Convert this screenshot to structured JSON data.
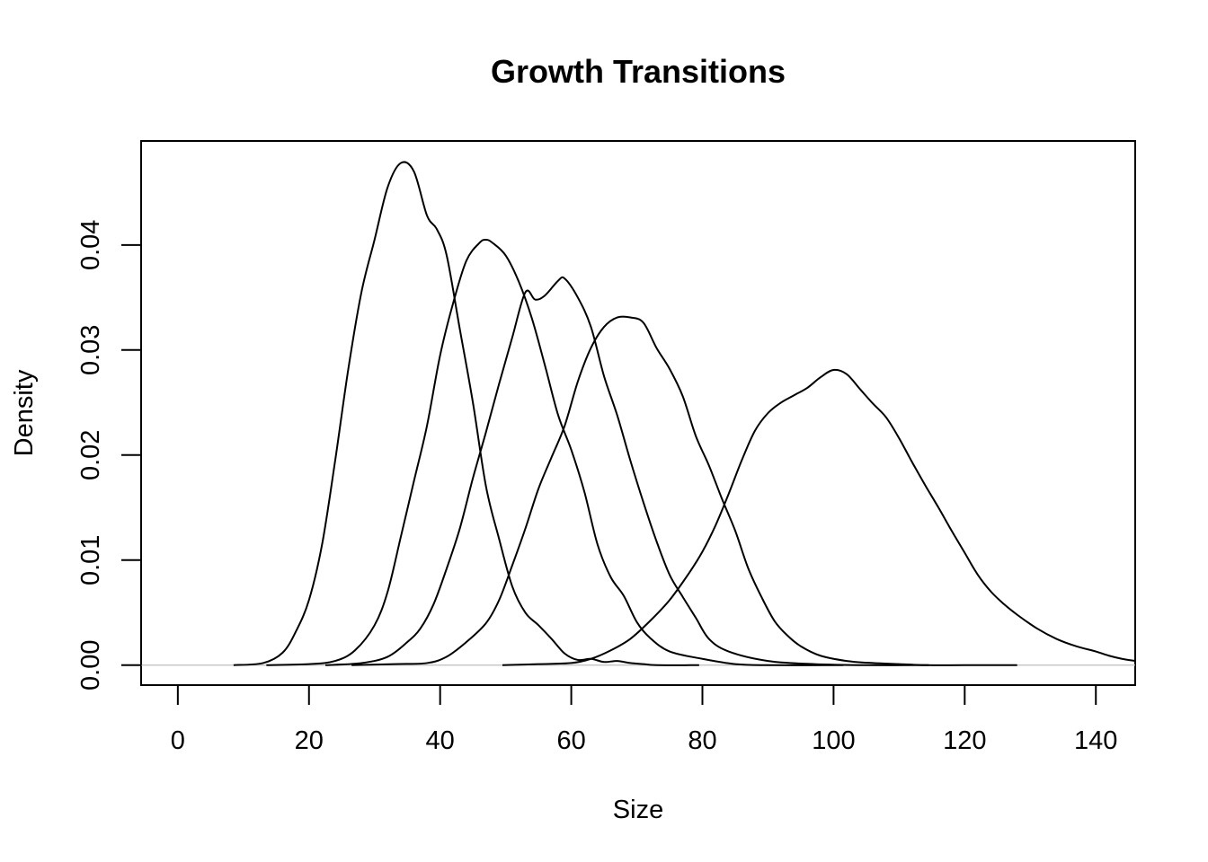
{
  "chart_data": {
    "type": "line",
    "title": "Growth Transitions",
    "xlabel": "Size",
    "ylabel": "Density",
    "xlim": [
      -5.6,
      146
    ],
    "ylim": [
      -0.0019,
      0.0499
    ],
    "x_ticks": [
      0,
      20,
      40,
      60,
      80,
      100,
      120,
      140
    ],
    "x_tick_labels": [
      "0",
      "20",
      "40",
      "60",
      "80",
      "100",
      "120",
      "140"
    ],
    "y_ticks": [
      0.0,
      0.01,
      0.02,
      0.03,
      0.04
    ],
    "y_tick_labels": [
      "0.00",
      "0.01",
      "0.02",
      "0.03",
      "0.04"
    ],
    "grid": false,
    "legend": "none",
    "zero_line": true,
    "line_color": "#000000",
    "zero_line_color": "#bebebe",
    "series": [
      {
        "x": [
          8.5,
          13,
          16,
          18,
          20,
          22,
          24,
          26,
          28,
          30,
          32,
          34,
          36,
          38,
          39.5,
          41,
          43,
          45,
          47,
          49,
          51,
          53,
          55,
          57,
          59,
          61,
          63,
          65,
          67,
          69,
          71,
          73,
          79.5
        ],
        "y": [
          0.0,
          0.0002,
          0.0012,
          0.0032,
          0.0062,
          0.0115,
          0.0195,
          0.0282,
          0.0355,
          0.0405,
          0.0455,
          0.0478,
          0.047,
          0.0428,
          0.0415,
          0.039,
          0.032,
          0.025,
          0.017,
          0.012,
          0.0075,
          0.005,
          0.0038,
          0.0025,
          0.0011,
          0.0005,
          0.0006,
          0.0003,
          0.0004,
          0.0002,
          0.0001,
          0.0,
          0.0
        ]
      },
      {
        "x": [
          13.5,
          20,
          24,
          27,
          30,
          32,
          34,
          36,
          38,
          40,
          42,
          44,
          46,
          47,
          48,
          50,
          52,
          54,
          56,
          58,
          60,
          62,
          64,
          66,
          68,
          70,
          72,
          75,
          80,
          85,
          90,
          101.5
        ],
        "y": [
          0.0,
          0.0001,
          0.0004,
          0.0014,
          0.0038,
          0.007,
          0.0122,
          0.0175,
          0.0228,
          0.0295,
          0.0345,
          0.0385,
          0.0402,
          0.0405,
          0.0402,
          0.039,
          0.0365,
          0.033,
          0.0285,
          0.0238,
          0.0205,
          0.0165,
          0.0115,
          0.0084,
          0.0066,
          0.0041,
          0.0026,
          0.0013,
          0.0006,
          0.0001,
          0.0,
          0.0
        ]
      },
      {
        "x": [
          22.5,
          28,
          32,
          35,
          37,
          39,
          41,
          43,
          45,
          47,
          49,
          51,
          53,
          54.5,
          56,
          58,
          59,
          61,
          63,
          65,
          67,
          69,
          71,
          73,
          75,
          77,
          79,
          81,
          84,
          90,
          97,
          105,
          114.5
        ],
        "y": [
          0.0,
          0.0002,
          0.0008,
          0.0022,
          0.0035,
          0.0058,
          0.0092,
          0.013,
          0.0178,
          0.0222,
          0.0268,
          0.0312,
          0.0355,
          0.0348,
          0.0352,
          0.0366,
          0.0368,
          0.035,
          0.0322,
          0.0275,
          0.0238,
          0.0195,
          0.0155,
          0.0118,
          0.0086,
          0.0065,
          0.0045,
          0.0025,
          0.0013,
          0.0004,
          0.0001,
          0.0,
          0.0
        ]
      },
      {
        "x": [
          26.5,
          33,
          38,
          41,
          44,
          47,
          49,
          51,
          53,
          55,
          57,
          59,
          61,
          63,
          65,
          67,
          69,
          71,
          73,
          75,
          77,
          79,
          81,
          83,
          85,
          87,
          89,
          91,
          93,
          95,
          98,
          102,
          106,
          110,
          114,
          120,
          128
        ],
        "y": [
          0.0,
          0.0001,
          0.0002,
          0.0008,
          0.0022,
          0.004,
          0.0062,
          0.0095,
          0.013,
          0.0168,
          0.0198,
          0.0228,
          0.027,
          0.0302,
          0.0322,
          0.0331,
          0.0331,
          0.0326,
          0.0302,
          0.0282,
          0.0256,
          0.0218,
          0.019,
          0.0158,
          0.0128,
          0.0092,
          0.0065,
          0.0042,
          0.0028,
          0.0018,
          0.0009,
          0.0004,
          0.0002,
          0.0001,
          0.0,
          0.0,
          0.0
        ]
      },
      {
        "x": [
          49.5,
          55,
          60,
          63,
          66,
          69,
          72,
          75,
          78,
          80,
          82,
          84,
          86,
          88,
          90,
          92,
          94,
          96,
          98,
          100,
          102,
          104,
          106,
          108,
          110,
          112,
          114,
          116,
          118,
          120,
          122,
          124,
          126,
          128,
          131,
          134,
          137,
          140,
          142,
          144,
          146
        ],
        "y": [
          0.0,
          0.0001,
          0.0002,
          0.0006,
          0.0014,
          0.0025,
          0.0042,
          0.0062,
          0.0088,
          0.0108,
          0.0133,
          0.0163,
          0.0195,
          0.0223,
          0.024,
          0.025,
          0.0257,
          0.0264,
          0.0274,
          0.0281,
          0.0277,
          0.0263,
          0.0249,
          0.0236,
          0.0216,
          0.0193,
          0.0171,
          0.015,
          0.0128,
          0.0107,
          0.0086,
          0.007,
          0.0058,
          0.0048,
          0.0035,
          0.0025,
          0.0018,
          0.0013,
          0.0009,
          0.0006,
          0.0004
        ]
      }
    ]
  }
}
